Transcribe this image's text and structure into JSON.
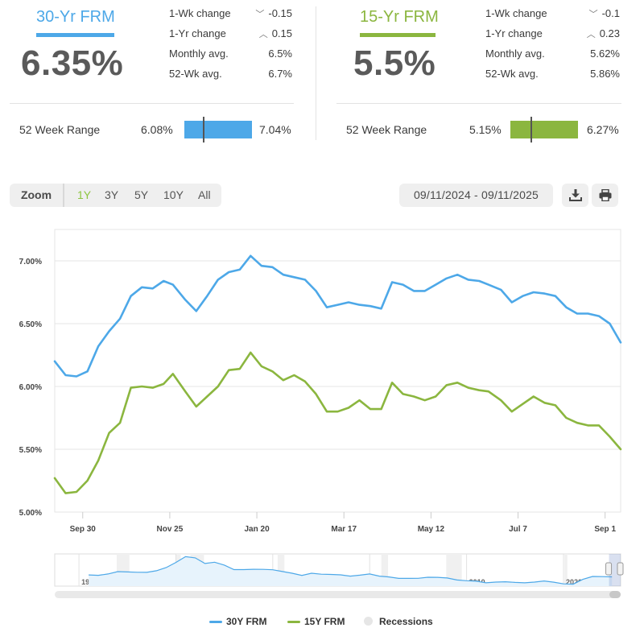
{
  "colors": {
    "frm30": "#4da8e8",
    "frm15": "#8bb63f",
    "recession": "#e6e6e6"
  },
  "panels": {
    "left": {
      "title": "30-Yr FRM",
      "rate": "6.35%",
      "stats": [
        {
          "label": "1-Wk change",
          "arrow": "chevron-down-icon",
          "glyph": "﹀",
          "value": "-0.15"
        },
        {
          "label": "1-Yr change",
          "arrow": "chevron-up-icon",
          "glyph": "︿",
          "value": "0.15"
        },
        {
          "label": "Monthly avg.",
          "value": "6.5%"
        },
        {
          "label": "52-Wk avg.",
          "value": "6.7%"
        }
      ],
      "range_label": "52 Week Range",
      "range_low": "6.08%",
      "range_high": "7.04%",
      "range_current_fraction": 0.28
    },
    "right": {
      "title": "15-Yr FRM",
      "rate": "5.5%",
      "stats": [
        {
          "label": "1-Wk change",
          "arrow": "chevron-down-icon",
          "glyph": "﹀",
          "value": "-0.1"
        },
        {
          "label": "1-Yr change",
          "arrow": "chevron-up-icon",
          "glyph": "︿",
          "value": "0.23"
        },
        {
          "label": "Monthly avg.",
          "value": "5.62%"
        },
        {
          "label": "52-Wk avg.",
          "value": "5.86%"
        }
      ],
      "range_label": "52 Week Range",
      "range_low": "5.15%",
      "range_high": "6.27%",
      "range_current_fraction": 0.31
    }
  },
  "toolbar": {
    "zoom_label": "Zoom",
    "zoom_options": [
      "1Y",
      "3Y",
      "5Y",
      "10Y",
      "All"
    ],
    "zoom_active": "1Y",
    "date_range": "09/11/2024 - 09/11/2025",
    "download_icon": "download-icon",
    "print_icon": "print-icon"
  },
  "legend": {
    "series1": "30Y FRM",
    "series2": "15Y FRM",
    "series3": "Recessions"
  },
  "chart_data": {
    "type": "line",
    "grid": true,
    "ylim": [
      5.0,
      7.25
    ],
    "xlim": [
      "2024-09-12",
      "2025-09-11"
    ],
    "y_ticks": [
      "5.00%",
      "5.50%",
      "6.00%",
      "6.50%",
      "7.00%"
    ],
    "y_tick_values": [
      5.0,
      5.5,
      6.0,
      6.5,
      7.0
    ],
    "x_ticks": [
      "Sep 30",
      "Nov 25",
      "Jan 20",
      "Mar 17",
      "May 12",
      "Jul 7",
      "Sep 1"
    ],
    "x_tick_dates": [
      "2024-09-30",
      "2024-11-25",
      "2025-01-20",
      "2025-03-17",
      "2025-05-12",
      "2025-07-07",
      "2025-09-01"
    ],
    "dates": [
      "2024-09-12",
      "2024-09-19",
      "2024-09-26",
      "2024-10-03",
      "2024-10-10",
      "2024-10-17",
      "2024-10-24",
      "2024-10-31",
      "2024-11-07",
      "2024-11-14",
      "2024-11-21",
      "2024-11-27",
      "2024-12-05",
      "2024-12-12",
      "2024-12-19",
      "2024-12-26",
      "2025-01-02",
      "2025-01-09",
      "2025-01-16",
      "2025-01-23",
      "2025-01-30",
      "2025-02-06",
      "2025-02-13",
      "2025-02-20",
      "2025-02-27",
      "2025-03-06",
      "2025-03-13",
      "2025-03-20",
      "2025-03-27",
      "2025-04-03",
      "2025-04-10",
      "2025-04-17",
      "2025-04-24",
      "2025-05-01",
      "2025-05-08",
      "2025-05-15",
      "2025-05-22",
      "2025-05-29",
      "2025-06-05",
      "2025-06-12",
      "2025-06-18",
      "2025-06-26",
      "2025-07-03",
      "2025-07-10",
      "2025-07-17",
      "2025-07-24",
      "2025-07-31",
      "2025-08-07",
      "2025-08-14",
      "2025-08-21",
      "2025-08-28",
      "2025-09-04",
      "2025-09-11"
    ],
    "series": [
      {
        "name": "30Y FRM",
        "values": [
          6.2,
          6.09,
          6.08,
          6.12,
          6.32,
          6.44,
          6.54,
          6.72,
          6.79,
          6.78,
          6.84,
          6.81,
          6.69,
          6.6,
          6.72,
          6.85,
          6.91,
          6.93,
          7.04,
          6.96,
          6.95,
          6.89,
          6.87,
          6.85,
          6.76,
          6.63,
          6.65,
          6.67,
          6.65,
          6.64,
          6.62,
          6.83,
          6.81,
          6.76,
          6.76,
          6.81,
          6.86,
          6.89,
          6.85,
          6.84,
          6.81,
          6.77,
          6.67,
          6.72,
          6.75,
          6.74,
          6.72,
          6.63,
          6.58,
          6.58,
          6.56,
          6.5,
          6.35
        ]
      },
      {
        "name": "15Y FRM",
        "values": [
          5.27,
          5.15,
          5.16,
          5.25,
          5.41,
          5.63,
          5.71,
          5.99,
          6.0,
          5.99,
          6.02,
          6.1,
          5.96,
          5.84,
          5.92,
          6.0,
          6.13,
          6.14,
          6.27,
          6.16,
          6.12,
          6.05,
          6.09,
          6.04,
          5.94,
          5.8,
          5.8,
          5.83,
          5.89,
          5.82,
          5.82,
          6.03,
          5.94,
          5.92,
          5.89,
          5.92,
          6.01,
          6.03,
          5.99,
          5.97,
          5.96,
          5.89,
          5.8,
          5.86,
          5.92,
          5.87,
          5.85,
          5.75,
          5.71,
          5.69,
          5.69,
          5.6,
          5.5
        ]
      }
    ],
    "navigator": {
      "x_ticks": [
        "1970",
        "1980",
        "1990",
        "2000",
        "2010",
        "2020"
      ],
      "x_tick_years": [
        1970,
        1980,
        1990,
        2000,
        2010,
        2020
      ],
      "xlim": [
        1967.5,
        2025.9
      ],
      "years": [
        1971,
        1972,
        1973,
        1974,
        1975,
        1976,
        1977,
        1978,
        1979,
        1980,
        1981,
        1982,
        1983,
        1984,
        1985,
        1986,
        1987,
        1988,
        1989,
        1990,
        1991,
        1992,
        1993,
        1994,
        1995,
        1996,
        1997,
        1998,
        1999,
        2000,
        2001,
        2002,
        2003,
        2004,
        2005,
        2006,
        2007,
        2008,
        2009,
        2010,
        2011,
        2012,
        2013,
        2014,
        2015,
        2016,
        2017,
        2018,
        2019,
        2020,
        2021,
        2022,
        2023,
        2024,
        2025
      ],
      "values": [
        7.54,
        7.38,
        8.04,
        9.19,
        9.05,
        8.87,
        8.85,
        9.64,
        11.2,
        13.74,
        16.63,
        16.04,
        13.24,
        13.88,
        12.43,
        10.19,
        10.21,
        10.34,
        10.32,
        10.13,
        9.25,
        8.39,
        7.31,
        8.38,
        7.93,
        7.81,
        7.6,
        6.94,
        7.44,
        8.05,
        6.97,
        6.54,
        5.83,
        5.84,
        5.87,
        6.41,
        6.34,
        6.03,
        5.04,
        4.69,
        4.45,
        3.66,
        3.98,
        4.17,
        3.85,
        3.65,
        3.99,
        4.54,
        3.94,
        3.11,
        2.96,
        5.34,
        6.81,
        6.72,
        6.61
      ],
      "recessions": [
        [
          1973.9,
          1975.2
        ],
        [
          1980.0,
          1980.5
        ],
        [
          1981.5,
          1982.9
        ],
        [
          1990.5,
          1991.2
        ],
        [
          2001.2,
          2001.9
        ],
        [
          2007.9,
          2009.5
        ],
        [
          2020.1,
          2020.4
        ]
      ]
    }
  }
}
